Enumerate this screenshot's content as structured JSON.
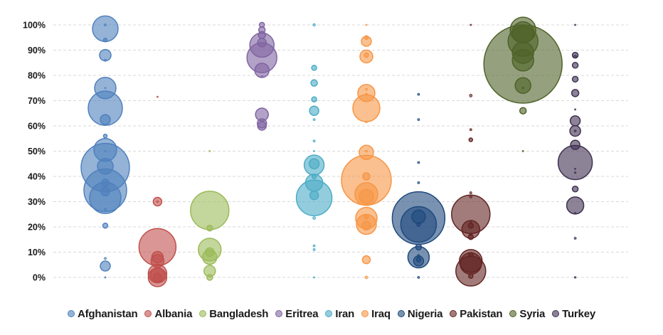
{
  "chart_data": {
    "type": "scatter",
    "subtype": "bubble",
    "title": "",
    "xlabel": "",
    "ylabel": "",
    "ylim": [
      0,
      100
    ],
    "yticks": [
      "0%",
      "10%",
      "20%",
      "30%",
      "40%",
      "50%",
      "60%",
      "70%",
      "80%",
      "90%",
      "100%"
    ],
    "ytick_values": [
      0,
      10,
      20,
      30,
      40,
      50,
      60,
      70,
      80,
      90,
      100
    ],
    "grid": true,
    "legend_position": "bottom",
    "categories": [
      "Afghanistan",
      "Albania",
      "Bangladesh",
      "Eritrea",
      "Iran",
      "Iraq",
      "Nigeria",
      "Pakistan",
      "Syria",
      "Turkey"
    ],
    "series": [
      {
        "name": "Afghanistan",
        "color": "#4f81bd",
        "points": [
          {
            "y": 98.5,
            "size": 18
          },
          {
            "y": 100,
            "size": 1.5
          },
          {
            "y": 94,
            "size": 2.5
          },
          {
            "y": 88,
            "size": 8
          },
          {
            "y": 86,
            "size": 1.5
          },
          {
            "y": 75,
            "size": 15
          },
          {
            "y": 75,
            "size": 0.5
          },
          {
            "y": 67,
            "size": 24
          },
          {
            "y": 62.5,
            "size": 7
          },
          {
            "y": 56,
            "size": 2.5
          },
          {
            "y": 50.5,
            "size": 16
          },
          {
            "y": 50,
            "size": 0.5
          },
          {
            "y": 43.5,
            "size": 34
          },
          {
            "y": 44,
            "size": 11
          },
          {
            "y": 37.5,
            "size": 5
          },
          {
            "y": 34.5,
            "size": 30
          },
          {
            "y": 34,
            "size": 6
          },
          {
            "y": 31.5,
            "size": 22
          },
          {
            "y": 27,
            "size": 1.5
          },
          {
            "y": 20.5,
            "size": 3.5
          },
          {
            "y": 7.5,
            "size": 1.5
          },
          {
            "y": 4.5,
            "size": 7
          },
          {
            "y": 0,
            "size": 0.5
          }
        ]
      },
      {
        "name": "Albania",
        "color": "#c0504d",
        "points": [
          {
            "y": 71.5,
            "size": 0.8
          },
          {
            "y": 30,
            "size": 6
          },
          {
            "y": 30,
            "size": 1.5
          },
          {
            "y": 12,
            "size": 26
          },
          {
            "y": 8,
            "size": 8
          },
          {
            "y": 6.5,
            "size": 9
          },
          {
            "y": 1.5,
            "size": 13
          },
          {
            "y": 1,
            "size": 10
          },
          {
            "y": 0,
            "size": 13
          },
          {
            "y": 0,
            "size": 6
          }
        ]
      },
      {
        "name": "Bangladesh",
        "color": "#9bbb59",
        "points": [
          {
            "y": 50,
            "size": 0.5
          },
          {
            "y": 26.5,
            "size": 27
          },
          {
            "y": 19.5,
            "size": 4
          },
          {
            "y": 11,
            "size": 16
          },
          {
            "y": 10,
            "size": 6
          },
          {
            "y": 8,
            "size": 10
          },
          {
            "y": 2.5,
            "size": 8
          },
          {
            "y": 0,
            "size": 4
          }
        ]
      },
      {
        "name": "Eritrea",
        "color": "#8064a2",
        "points": [
          {
            "y": 100,
            "size": 3.5
          },
          {
            "y": 98,
            "size": 4.5
          },
          {
            "y": 96,
            "size": 5
          },
          {
            "y": 93,
            "size": 6
          },
          {
            "y": 92,
            "size": 17
          },
          {
            "y": 87,
            "size": 21
          },
          {
            "y": 82,
            "size": 10
          },
          {
            "y": 79.5,
            "size": 1.5
          },
          {
            "y": 64.5,
            "size": 9
          },
          {
            "y": 61,
            "size": 6.5
          },
          {
            "y": 60,
            "size": 6
          }
        ]
      },
      {
        "name": "Iran",
        "color": "#4bacc6",
        "points": [
          {
            "y": 100,
            "size": 1.8
          },
          {
            "y": 83,
            "size": 3.5
          },
          {
            "y": 77,
            "size": 4.5
          },
          {
            "y": 70.5,
            "size": 3.5
          },
          {
            "y": 66,
            "size": 6.5
          },
          {
            "y": 62.5,
            "size": 1.5
          },
          {
            "y": 54,
            "size": 1.5
          },
          {
            "y": 50,
            "size": 0.8
          },
          {
            "y": 44.5,
            "size": 14
          },
          {
            "y": 45,
            "size": 7
          },
          {
            "y": 40,
            "size": 3
          },
          {
            "y": 37.5,
            "size": 12
          },
          {
            "y": 32.5,
            "size": 6
          },
          {
            "y": 31.5,
            "size": 25
          },
          {
            "y": 23.5,
            "size": 2
          },
          {
            "y": 12.5,
            "size": 1.5
          },
          {
            "y": 11,
            "size": 1.5
          },
          {
            "y": 0,
            "size": 0.8
          }
        ]
      },
      {
        "name": "Iraq",
        "color": "#f79646",
        "points": [
          {
            "y": 100,
            "size": 1
          },
          {
            "y": 95,
            "size": 2.5
          },
          {
            "y": 93.5,
            "size": 7
          },
          {
            "y": 87.5,
            "size": 9
          },
          {
            "y": 88,
            "size": 3
          },
          {
            "y": 74.5,
            "size": 1.5
          },
          {
            "y": 73,
            "size": 12
          },
          {
            "y": 72.5,
            "size": 1.5
          },
          {
            "y": 67,
            "size": 19
          },
          {
            "y": 61.5,
            "size": 1.2
          },
          {
            "y": 50,
            "size": 1.5
          },
          {
            "y": 49.5,
            "size": 10
          },
          {
            "y": 38.5,
            "size": 35
          },
          {
            "y": 40,
            "size": 5
          },
          {
            "y": 33,
            "size": 16
          },
          {
            "y": 32,
            "size": 10
          },
          {
            "y": 23.5,
            "size": 15
          },
          {
            "y": 24,
            "size": 3
          },
          {
            "y": 21,
            "size": 14
          },
          {
            "y": 20.5,
            "size": 6
          },
          {
            "y": 7,
            "size": 5.5
          },
          {
            "y": 0,
            "size": 2
          }
        ]
      },
      {
        "name": "Nigeria",
        "color": "#1f497d",
        "points": [
          {
            "y": 72.5,
            "size": 1.5
          },
          {
            "y": 62.5,
            "size": 1.5
          },
          {
            "y": 45.5,
            "size": 1.5
          },
          {
            "y": 37.5,
            "size": 1.5
          },
          {
            "y": 23.5,
            "size": 37
          },
          {
            "y": 21,
            "size": 25
          },
          {
            "y": 24,
            "size": 9.5
          },
          {
            "y": 21,
            "size": 2.5
          },
          {
            "y": 12,
            "size": 4
          },
          {
            "y": 8,
            "size": 15
          },
          {
            "y": 8.5,
            "size": 2
          },
          {
            "y": 7,
            "size": 3
          },
          {
            "y": 6.5,
            "size": 7
          },
          {
            "y": 0,
            "size": 1.5
          }
        ]
      },
      {
        "name": "Pakistan",
        "color": "#632523",
        "points": [
          {
            "y": 100,
            "size": 0.5
          },
          {
            "y": 72,
            "size": 2
          },
          {
            "y": 58.5,
            "size": 1.5
          },
          {
            "y": 54.5,
            "size": 2.5
          },
          {
            "y": 33.5,
            "size": 1.5
          },
          {
            "y": 32,
            "size": 2
          },
          {
            "y": 25,
            "size": 27
          },
          {
            "y": 22,
            "size": 0.5
          },
          {
            "y": 20.5,
            "size": 3.5
          },
          {
            "y": 19,
            "size": 12.5
          },
          {
            "y": 17,
            "size": 2
          },
          {
            "y": 16,
            "size": 3.5
          },
          {
            "y": 9,
            "size": 3
          },
          {
            "y": 6.5,
            "size": 16
          },
          {
            "y": 5.5,
            "size": 15
          },
          {
            "y": 2.5,
            "size": 21
          },
          {
            "y": 0.5,
            "size": 3
          }
        ]
      },
      {
        "name": "Syria",
        "color": "#4f6228",
        "points": [
          {
            "y": 98,
            "size": 18
          },
          {
            "y": 97,
            "size": 15
          },
          {
            "y": 93.5,
            "size": 21
          },
          {
            "y": 89,
            "size": 15
          },
          {
            "y": 86,
            "size": 15
          },
          {
            "y": 84.5,
            "size": 55
          },
          {
            "y": 76,
            "size": 11
          },
          {
            "y": 75,
            "size": 1.5
          },
          {
            "y": 66,
            "size": 4.5
          },
          {
            "y": 50,
            "size": 0.8
          }
        ]
      },
      {
        "name": "Turkey",
        "color": "#3f3151",
        "points": [
          {
            "y": 100,
            "size": 1
          },
          {
            "y": 88,
            "size": 4
          },
          {
            "y": 87.5,
            "size": 2
          },
          {
            "y": 84,
            "size": 4
          },
          {
            "y": 78.5,
            "size": 4
          },
          {
            "y": 73,
            "size": 5
          },
          {
            "y": 66.5,
            "size": 1
          },
          {
            "y": 62,
            "size": 7
          },
          {
            "y": 58,
            "size": 7.5
          },
          {
            "y": 58,
            "size": 1.5
          },
          {
            "y": 52.5,
            "size": 6.5
          },
          {
            "y": 45.5,
            "size": 24
          },
          {
            "y": 43,
            "size": 1
          },
          {
            "y": 41.5,
            "size": 1.2
          },
          {
            "y": 35,
            "size": 4
          },
          {
            "y": 28.5,
            "size": 12
          },
          {
            "y": 25.5,
            "size": 0.8
          },
          {
            "y": 15.5,
            "size": 1.5
          },
          {
            "y": 0,
            "size": 1.2
          }
        ]
      }
    ]
  }
}
